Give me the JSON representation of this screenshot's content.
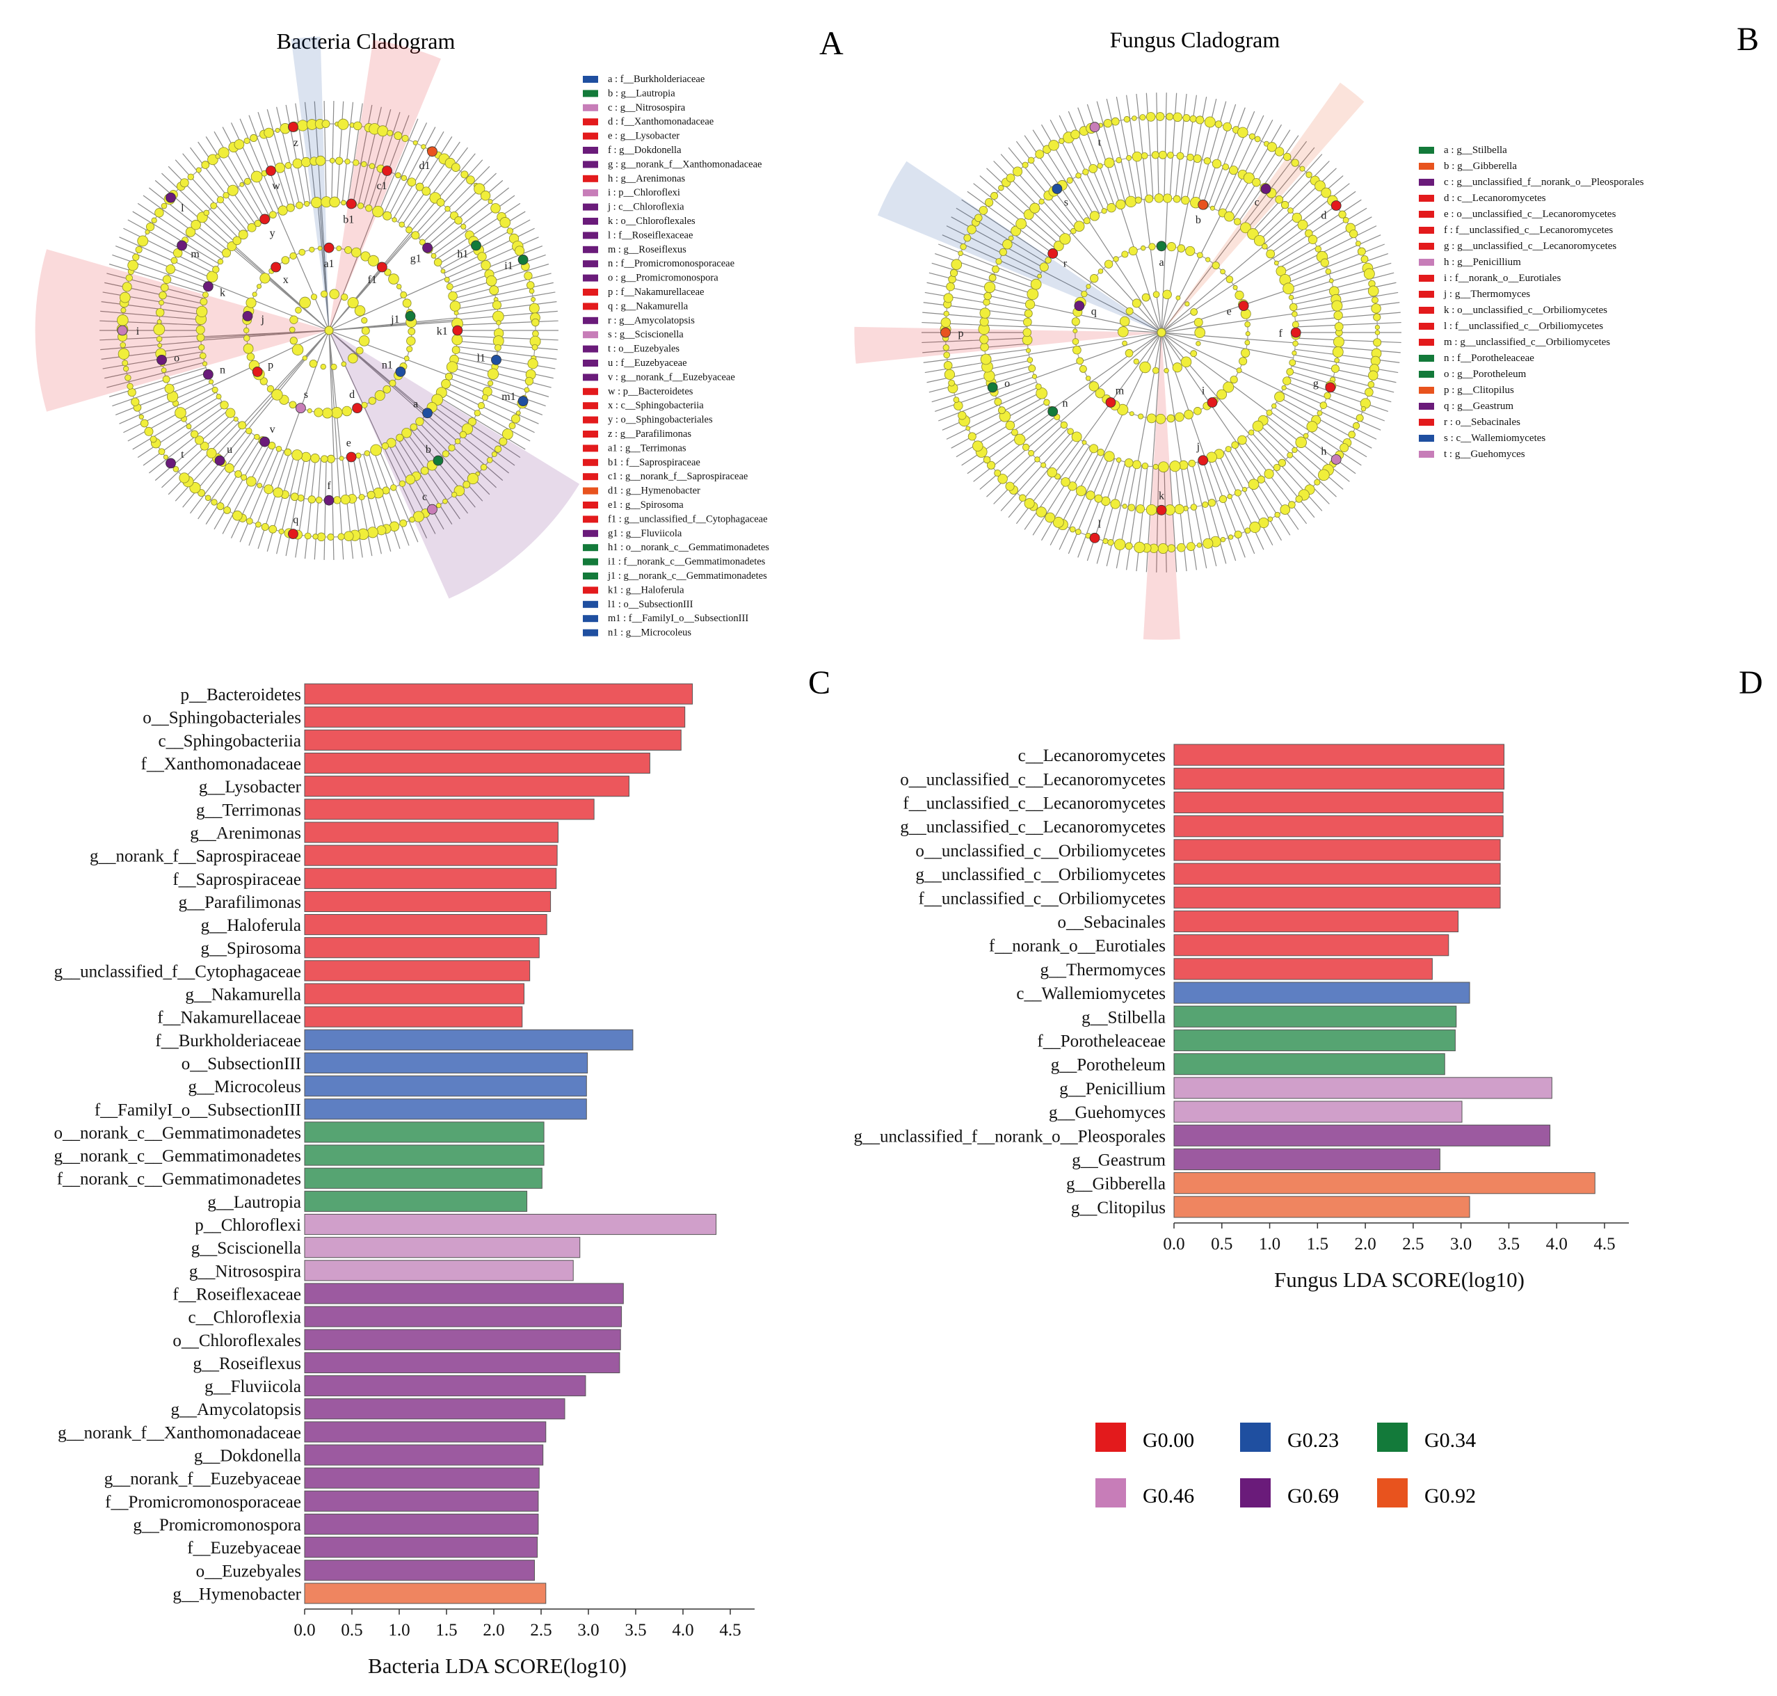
{
  "panel_labels": {
    "a": "A",
    "b": "B",
    "c": "C",
    "d": "D"
  },
  "bacteria_cladogram": {
    "title": "Bacteria Cladogram",
    "ring_letters": [
      "a1",
      "b1",
      "c1",
      "d1",
      "f1",
      "g1",
      "h1",
      "i1",
      "j1",
      "k1",
      "l1",
      "m1",
      "n1",
      "a",
      "b",
      "c",
      "d",
      "e",
      "f",
      "q",
      "s",
      "v",
      "u",
      "t",
      "p",
      "n",
      "o",
      "i",
      "j",
      "k",
      "m",
      "l",
      "x",
      "y",
      "w",
      "z"
    ],
    "legend": [
      {
        "key": "a",
        "label": "f__Burkholderiaceae",
        "group": "G0.23"
      },
      {
        "key": "b",
        "label": "g__Lautropia",
        "group": "G0.34"
      },
      {
        "key": "c",
        "label": "g__Nitrosospira",
        "group": "G0.46"
      },
      {
        "key": "d",
        "label": "f__Xanthomonadaceae",
        "group": "G0.00"
      },
      {
        "key": "e",
        "label": "g__Lysobacter",
        "group": "G0.00"
      },
      {
        "key": "f",
        "label": "g__Dokdonella",
        "group": "G0.69"
      },
      {
        "key": "g",
        "label": "g__norank_f__Xanthomonadaceae",
        "group": "G0.69"
      },
      {
        "key": "h",
        "label": "g__Arenimonas",
        "group": "G0.00"
      },
      {
        "key": "i",
        "label": "p__Chloroflexi",
        "group": "G0.46"
      },
      {
        "key": "j",
        "label": "c__Chloroflexia",
        "group": "G0.69"
      },
      {
        "key": "k",
        "label": "o__Chloroflexales",
        "group": "G0.69"
      },
      {
        "key": "l",
        "label": "f__Roseiflexaceae",
        "group": "G0.69"
      },
      {
        "key": "m",
        "label": "g__Roseiflexus",
        "group": "G0.69"
      },
      {
        "key": "n",
        "label": "f__Promicromonosporaceae",
        "group": "G0.69"
      },
      {
        "key": "o",
        "label": "g__Promicromonospora",
        "group": "G0.69"
      },
      {
        "key": "p",
        "label": "f__Nakamurellaceae",
        "group": "G0.00"
      },
      {
        "key": "q",
        "label": "g__Nakamurella",
        "group": "G0.00"
      },
      {
        "key": "r",
        "label": "g__Amycolatopsis",
        "group": "G0.69"
      },
      {
        "key": "s",
        "label": "g__Sciscionella",
        "group": "G0.46"
      },
      {
        "key": "t",
        "label": "o__Euzebyales",
        "group": "G0.69"
      },
      {
        "key": "u",
        "label": "f__Euzebyaceae",
        "group": "G0.69"
      },
      {
        "key": "v",
        "label": "g__norank_f__Euzebyaceae",
        "group": "G0.69"
      },
      {
        "key": "w",
        "label": "p__Bacteroidetes",
        "group": "G0.00"
      },
      {
        "key": "x",
        "label": "c__Sphingobacteriia",
        "group": "G0.00"
      },
      {
        "key": "y",
        "label": "o__Sphingobacteriales",
        "group": "G0.00"
      },
      {
        "key": "z",
        "label": "g__Parafilimonas",
        "group": "G0.00"
      },
      {
        "key": "a1",
        "label": "g__Terrimonas",
        "group": "G0.00"
      },
      {
        "key": "b1",
        "label": "f__Saprospiraceae",
        "group": "G0.00"
      },
      {
        "key": "c1",
        "label": "g__norank_f__Saprospiraceae",
        "group": "G0.00"
      },
      {
        "key": "d1",
        "label": "g__Hymenobacter",
        "group": "G0.92"
      },
      {
        "key": "e1",
        "label": "g__Spirosoma",
        "group": "G0.00"
      },
      {
        "key": "f1",
        "label": "g__unclassified_f__Cytophagaceae",
        "group": "G0.00"
      },
      {
        "key": "g1",
        "label": "g__Fluviicola",
        "group": "G0.69"
      },
      {
        "key": "h1",
        "label": "o__norank_c__Gemmatimonadetes",
        "group": "G0.34"
      },
      {
        "key": "i1",
        "label": "f__norank_c__Gemmatimonadetes",
        "group": "G0.34"
      },
      {
        "key": "j1",
        "label": "g__norank_c__Gemmatimonadetes",
        "group": "G0.34"
      },
      {
        "key": "k1",
        "label": "g__Haloferula",
        "group": "G0.00"
      },
      {
        "key": "l1",
        "label": "o__SubsectionIII",
        "group": "G0.23"
      },
      {
        "key": "m1",
        "label": "f__FamilyI_o__SubsectionIII",
        "group": "G0.23"
      },
      {
        "key": "n1",
        "label": "g__Microcoleus",
        "group": "G0.23"
      }
    ]
  },
  "fungus_cladogram": {
    "title": "Fungus Cladogram",
    "ring_letters": [
      "a",
      "b",
      "c",
      "d",
      "e",
      "f",
      "g",
      "h",
      "i",
      "j",
      "k",
      "l",
      "m",
      "n",
      "o",
      "p",
      "q",
      "r",
      "s",
      "t"
    ],
    "legend": [
      {
        "key": "a",
        "label": "g__Stilbella",
        "group": "G0.34"
      },
      {
        "key": "b",
        "label": "g__Gibberella",
        "group": "G0.92"
      },
      {
        "key": "c",
        "label": "g__unclassified_f__norank_o__Pleosporales",
        "group": "G0.69"
      },
      {
        "key": "d",
        "label": "c__Lecanoromycetes",
        "group": "G0.00"
      },
      {
        "key": "e",
        "label": "o__unclassified_c__Lecanoromycetes",
        "group": "G0.00"
      },
      {
        "key": "f",
        "label": "f__unclassified_c__Lecanoromycetes",
        "group": "G0.00"
      },
      {
        "key": "g",
        "label": "g__unclassified_c__Lecanoromycetes",
        "group": "G0.00"
      },
      {
        "key": "h",
        "label": "g__Penicillium",
        "group": "G0.46"
      },
      {
        "key": "i",
        "label": "f__norank_o__Eurotiales",
        "group": "G0.00"
      },
      {
        "key": "j",
        "label": "g__Thermomyces",
        "group": "G0.00"
      },
      {
        "key": "k",
        "label": "o__unclassified_c__Orbiliomycetes",
        "group": "G0.00"
      },
      {
        "key": "l",
        "label": "f__unclassified_c__Orbiliomycetes",
        "group": "G0.00"
      },
      {
        "key": "m",
        "label": "g__unclassified_c__Orbiliomycetes",
        "group": "G0.00"
      },
      {
        "key": "n",
        "label": "f__Porotheleaceae",
        "group": "G0.34"
      },
      {
        "key": "o",
        "label": "g__Porotheleum",
        "group": "G0.34"
      },
      {
        "key": "p",
        "label": "g__Clitopilus",
        "group": "G0.92"
      },
      {
        "key": "q",
        "label": "g__Geastrum",
        "group": "G0.69"
      },
      {
        "key": "r",
        "label": "o__Sebacinales",
        "group": "G0.00"
      },
      {
        "key": "s",
        "label": "c__Wallemiomycetes",
        "group": "G0.23"
      },
      {
        "key": "t",
        "label": "g__Guehomyces",
        "group": "G0.46"
      }
    ]
  },
  "groups": [
    {
      "name": "G0.00",
      "color": "#e31a1c",
      "bar_color": "#ec575c"
    },
    {
      "name": "G0.23",
      "color": "#1f4fa0",
      "bar_color": "#5e7fc2"
    },
    {
      "name": "G0.34",
      "color": "#137a3a",
      "bar_color": "#56a472"
    },
    {
      "name": "G0.46",
      "color": "#c77db8",
      "bar_color": "#d09fca"
    },
    {
      "name": "G0.69",
      "color": "#6a1b7a",
      "bar_color": "#9c5aa0"
    },
    {
      "name": "G0.92",
      "color": "#e8531e",
      "bar_color": "#ef8560"
    }
  ],
  "legend_labels": [
    "G0.00",
    "G0.23",
    "G0.34",
    "G0.46",
    "G0.69",
    "G0.92"
  ],
  "chart_data": [
    {
      "type": "bar",
      "orientation": "horizontal",
      "title": "",
      "xlabel": "Bacteria LDA SCORE(log10)",
      "ylabel": "",
      "xlim": [
        0,
        4.5
      ],
      "xticks": [
        "0.0",
        "0.5",
        "1.0",
        "1.5",
        "2.0",
        "2.5",
        "3.0",
        "3.5",
        "4.0",
        "4.5"
      ],
      "categories": [
        "p__Bacteroidetes",
        "o__Sphingobacteriales",
        "c__Sphingobacteriia",
        "f__Xanthomonadaceae",
        "g__Lysobacter",
        "g__Terrimonas",
        "g__Arenimonas",
        "g__norank_f__Saprospiraceae",
        "f__Saprospiraceae",
        "g__Parafilimonas",
        "g__Haloferula",
        "g__Spirosoma",
        "g__unclassified_f__Cytophagaceae",
        "g__Nakamurella",
        "f__Nakamurellaceae",
        "f__Burkholderiaceae",
        "o__SubsectionIII",
        "g__Microcoleus",
        "f__FamilyI_o__SubsectionIII",
        "o__norank_c__Gemmatimonadetes",
        "g__norank_c__Gemmatimonadetes",
        "f__norank_c__Gemmatimonadetes",
        "g__Lautropia",
        "p__Chloroflexi",
        "g__Sciscionella",
        "g__Nitrosospira",
        "f__Roseiflexaceae",
        "c__Chloroflexia",
        "o__Chloroflexales",
        "g__Roseiflexus",
        "g__Fluviicola",
        "g__Amycolatopsis",
        "g__norank_f__Xanthomonadaceae",
        "g__Dokdonella",
        "g__norank_f__Euzebyaceae",
        "f__Promicromonosporaceae",
        "g__Promicromonospora",
        "f__Euzebyaceae",
        "o__Euzebyales",
        "g__Hymenobacter"
      ],
      "values": [
        4.1,
        4.02,
        3.98,
        3.65,
        3.43,
        3.06,
        2.68,
        2.67,
        2.66,
        2.6,
        2.56,
        2.48,
        2.38,
        2.32,
        2.3,
        3.47,
        2.99,
        2.98,
        2.98,
        2.53,
        2.53,
        2.51,
        2.35,
        4.35,
        2.91,
        2.84,
        3.37,
        3.35,
        3.34,
        3.33,
        2.97,
        2.75,
        2.55,
        2.52,
        2.48,
        2.47,
        2.47,
        2.46,
        2.43,
        2.55
      ],
      "groups": [
        "G0.00",
        "G0.00",
        "G0.00",
        "G0.00",
        "G0.00",
        "G0.00",
        "G0.00",
        "G0.00",
        "G0.00",
        "G0.00",
        "G0.00",
        "G0.00",
        "G0.00",
        "G0.00",
        "G0.00",
        "G0.23",
        "G0.23",
        "G0.23",
        "G0.23",
        "G0.34",
        "G0.34",
        "G0.34",
        "G0.34",
        "G0.46",
        "G0.46",
        "G0.46",
        "G0.69",
        "G0.69",
        "G0.69",
        "G0.69",
        "G0.69",
        "G0.69",
        "G0.69",
        "G0.69",
        "G0.69",
        "G0.69",
        "G0.69",
        "G0.69",
        "G0.69",
        "G0.92"
      ]
    },
    {
      "type": "bar",
      "orientation": "horizontal",
      "title": "",
      "xlabel": "Fungus LDA SCORE(log10)",
      "ylabel": "",
      "xlim": [
        0,
        4.5
      ],
      "xticks": [
        "0.0",
        "0.5",
        "1.0",
        "1.5",
        "2.0",
        "2.5",
        "3.0",
        "3.5",
        "4.0",
        "4.5"
      ],
      "categories": [
        "c__Lecanoromycetes",
        "o__unclassified_c__Lecanoromycetes",
        "f__unclassified_c__Lecanoromycetes",
        "g__unclassified_c__Lecanoromycetes",
        "o__unclassified_c__Orbiliomycetes",
        "g__unclassified_c__Orbiliomycetes",
        "f__unclassified_c__Orbiliomycetes",
        "o__Sebacinales",
        "f__norank_o__Eurotiales",
        "g__Thermomyces",
        "c__Wallemiomycetes",
        "g__Stilbella",
        "f__Porotheleaceae",
        "g__Porotheleum",
        "g__Penicillium",
        "g__Guehomyces",
        "g__unclassified_f__norank_o__Pleosporales",
        "g__Geastrum",
        "g__Gibberella",
        "g__Clitopilus"
      ],
      "values": [
        3.45,
        3.45,
        3.44,
        3.44,
        3.41,
        3.41,
        3.41,
        2.97,
        2.87,
        2.7,
        3.09,
        2.95,
        2.94,
        2.83,
        3.95,
        3.01,
        3.93,
        2.78,
        4.4,
        3.09
      ],
      "groups": [
        "G0.00",
        "G0.00",
        "G0.00",
        "G0.00",
        "G0.00",
        "G0.00",
        "G0.00",
        "G0.00",
        "G0.00",
        "G0.00",
        "G0.23",
        "G0.34",
        "G0.34",
        "G0.34",
        "G0.46",
        "G0.46",
        "G0.69",
        "G0.69",
        "G0.92",
        "G0.92"
      ]
    }
  ]
}
